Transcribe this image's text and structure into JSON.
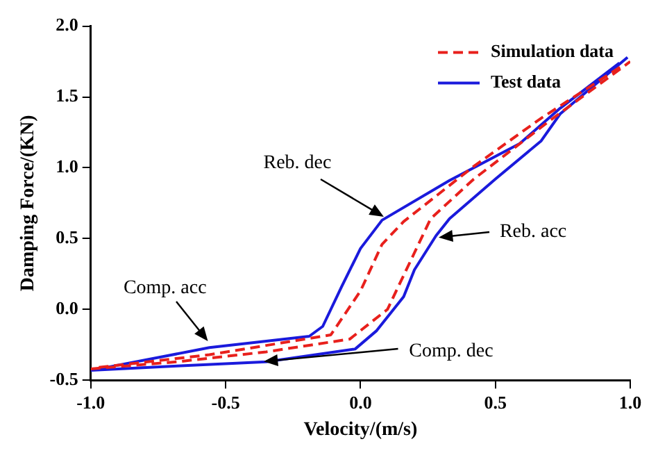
{
  "chart_data": {
    "type": "line",
    "xlabel": "Velocity/(m/s)",
    "ylabel": "Damping Force/(KN)",
    "xlim": [
      -1.0,
      1.0
    ],
    "xticks": [
      {
        "value": -1,
        "label": "-1.0"
      },
      {
        "value": -0.5,
        "label": "-0.5"
      },
      {
        "value": 0,
        "label": "0.0"
      },
      {
        "value": 0.5,
        "label": "0.5"
      },
      {
        "value": 1,
        "label": "1.0"
      }
    ],
    "ylim": [
      -0.5,
      2.0
    ],
    "yticks": [
      {
        "value": -0.5,
        "label": "-0.5"
      },
      {
        "value": 0,
        "label": "0.0"
      },
      {
        "value": 0.5,
        "label": "0.5"
      },
      {
        "value": 1,
        "label": "1.0"
      },
      {
        "value": 1.5,
        "label": "1.5"
      },
      {
        "value": 2,
        "label": "2.0"
      }
    ],
    "grid": false,
    "legend": "top right",
    "marker": "none",
    "series": [
      {
        "name": "Simulation data",
        "color": "#e8201c",
        "line_style": "dashed",
        "x": [
          -1.0,
          -0.68,
          -0.35,
          -0.04,
          0.1,
          0.2,
          0.26,
          0.42,
          0.7,
          1.0
        ],
        "values": [
          -0.42,
          -0.37,
          -0.3,
          -0.21,
          0.0,
          0.4,
          0.64,
          0.92,
          1.33,
          1.75
        ]
      },
      {
        "color": "#e8201c",
        "line_style": "dashed",
        "x": [
          -0.97,
          -0.56,
          -0.11,
          0.0,
          0.08,
          0.16,
          0.42,
          0.67,
          0.97
        ],
        "values": [
          -0.41,
          -0.32,
          -0.18,
          0.13,
          0.46,
          0.62,
          1.01,
          1.35,
          1.72
        ]
      },
      {
        "name": "Test data",
        "color": "#1a1adc",
        "line_style": "solid",
        "x": [
          -1.0,
          -0.68,
          -0.35,
          -0.02,
          0.06,
          0.16,
          0.2,
          0.28,
          0.33,
          0.5,
          0.67,
          0.74,
          0.99
        ],
        "values": [
          -0.43,
          -0.4,
          -0.37,
          -0.28,
          -0.15,
          0.09,
          0.28,
          0.52,
          0.64,
          0.92,
          1.19,
          1.38,
          1.78
        ]
      },
      {
        "color": "#1a1adc",
        "line_style": "solid",
        "x": [
          -0.97,
          -0.56,
          -0.19,
          -0.14,
          -0.07,
          0.0,
          0.08,
          0.33,
          0.59,
          0.74,
          0.96
        ],
        "values": [
          -0.42,
          -0.27,
          -0.19,
          -0.12,
          0.16,
          0.43,
          0.63,
          0.91,
          1.17,
          1.42,
          1.74
        ]
      }
    ],
    "annotations": [
      "Reb. dec",
      "Reb. acc",
      {
        "text": "Comp. acc",
        "x": -0.56,
        "y": -0.24
      },
      {
        "text": "Comp. dec",
        "x": -0.36,
        "y": -0.37
      }
    ]
  }
}
